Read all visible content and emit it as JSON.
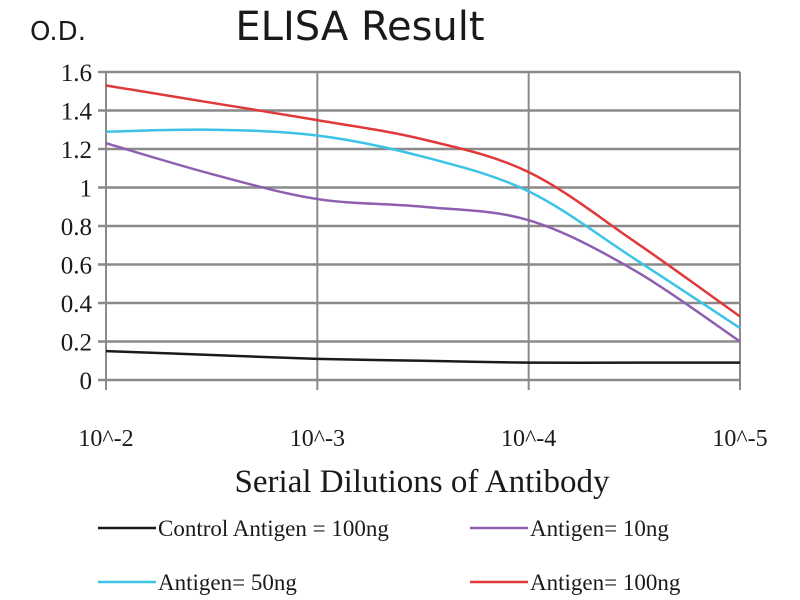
{
  "chart_data": {
    "type": "line",
    "title": "ELISA Result",
    "ylabel": "O.D.",
    "xlabel": "Serial Dilutions of Antibody",
    "x_scale": "log, reversed",
    "x": [
      0.01,
      0.00316,
      0.001,
      0.000316,
      0.0001,
      3.16e-05,
      1e-05
    ],
    "x_ticks": [
      "10^-2",
      "10^-3",
      "10^-4",
      "10^-5"
    ],
    "y_ticks": [
      "0",
      "0.2",
      "0.4",
      "0.6",
      "0.8",
      "1",
      "1.2",
      "1.4",
      "1.6"
    ],
    "ylim": [
      0,
      1.6
    ],
    "grid": true,
    "legend_position": "bottom",
    "series": [
      {
        "name": "Control Antigen = 100ng",
        "color": "#1a1a1a",
        "values": [
          0.15,
          0.13,
          0.11,
          0.1,
          0.09,
          0.09,
          0.09
        ]
      },
      {
        "name": "Antigen= 10ng",
        "color": "#8e5fb0",
        "values": [
          1.23,
          1.07,
          0.94,
          0.9,
          0.83,
          0.57,
          0.2
        ]
      },
      {
        "name": "Antigen= 50ng",
        "color": "#3cc3e6",
        "values": [
          1.29,
          1.3,
          1.27,
          1.16,
          0.98,
          0.63,
          0.27
        ]
      },
      {
        "name": "Antigen= 100ng",
        "color": "#e0393a",
        "values": [
          1.53,
          1.44,
          1.35,
          1.25,
          1.08,
          0.72,
          0.33
        ]
      }
    ]
  }
}
